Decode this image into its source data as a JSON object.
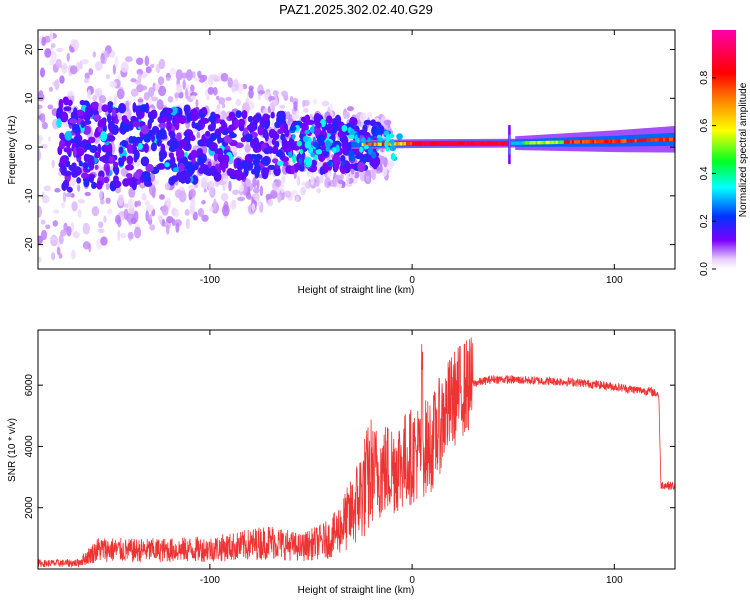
{
  "title": "PAZ1.2025.302.02.40.G29",
  "chart_data": [
    {
      "type": "heatmap",
      "xlabel": "Height of straight line (km)",
      "ylabel": "Frequency (Hz)",
      "xlim": [
        -185,
        130
      ],
      "ylim": [
        -25,
        24
      ],
      "x_ticks": [
        -100,
        0,
        100
      ],
      "x_tick_labels": [
        "-100",
        "0",
        "100"
      ],
      "y_ticks": [
        -20,
        -10,
        0,
        10,
        20
      ],
      "y_tick_labels": [
        "-20",
        "-10",
        "0",
        "10",
        "20"
      ],
      "colorbar": {
        "label": "Normalized spectral amplitude",
        "range": [
          0,
          1
        ],
        "ticks": [
          0.0,
          0.2,
          0.4,
          0.6,
          0.8
        ],
        "tick_labels": [
          "0.0",
          "0.2",
          "0.4",
          "0.6",
          "0.8"
        ],
        "colormap": [
          "#ffffff",
          "#e9d0fb",
          "#7a00ff",
          "#0033ff",
          "#00ffff",
          "#00ff22",
          "#ffff00",
          "#ff8800",
          "#ff0000",
          "#ff00aa"
        ]
      },
      "ridge": {
        "description_points": [
          [
            -30,
            0.5
          ],
          [
            0,
            0.7
          ],
          [
            50,
            0.8
          ],
          [
            100,
            1.2
          ],
          [
            130,
            1.6
          ]
        ]
      }
    },
    {
      "type": "line",
      "xlabel": "Height of straight line (km)",
      "ylabel": "SNR (10 * v/v)",
      "xlim": [
        -185,
        130
      ],
      "ylim": [
        0,
        7800
      ],
      "x_ticks": [
        -100,
        0,
        100
      ],
      "x_tick_labels": [
        "-100",
        "0",
        "100"
      ],
      "y_ticks": [
        2000,
        4000,
        6000
      ],
      "y_tick_labels": [
        "2000",
        "4000",
        "6000"
      ],
      "color": "#ee3333",
      "series": [
        {
          "name": "SNR",
          "x": [
            -185,
            -165,
            -155,
            -140,
            -120,
            -100,
            -85,
            -70,
            -55,
            -40,
            -30,
            -25,
            -20,
            -15,
            -10,
            -5,
            0,
            5,
            10,
            15,
            20,
            25,
            30,
            40,
            60,
            80,
            100,
            110,
            118,
            122,
            123,
            130
          ],
          "y": [
            180,
            200,
            650,
            600,
            620,
            650,
            750,
            900,
            700,
            1000,
            1800,
            2500,
            3100,
            3200,
            3300,
            3500,
            3700,
            3900,
            4100,
            4900,
            5500,
            5900,
            6050,
            6200,
            6150,
            6100,
            5950,
            5850,
            5800,
            5700,
            2750,
            2700
          ]
        }
      ]
    }
  ]
}
